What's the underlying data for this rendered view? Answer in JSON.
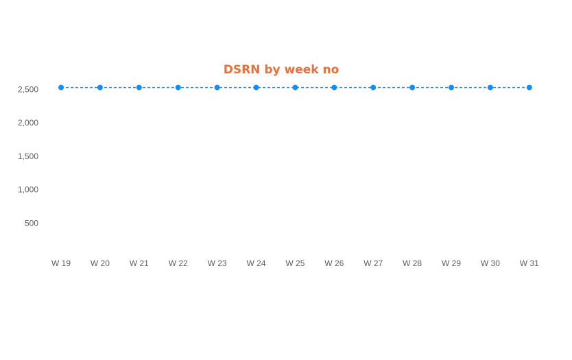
{
  "chart_data": {
    "type": "line",
    "title": "DSRN by week no",
    "xlabel": "",
    "ylabel": "",
    "categories": [
      "W 19",
      "W 20",
      "W 21",
      "W 22",
      "W 23",
      "W 24",
      "W 25",
      "W 26",
      "W 27",
      "W 28",
      "W 29",
      "W 30",
      "W 31"
    ],
    "series": [
      {
        "values": [
          2530,
          2530,
          2530,
          2530,
          2530,
          2530,
          2530,
          2530,
          2530,
          2530,
          2530,
          2530,
          2530
        ],
        "color": "#118dff",
        "line_style": "dashed"
      }
    ],
    "y_ticks": [
      {
        "value": 500,
        "label": "500"
      },
      {
        "value": 1000,
        "label": "1,000"
      },
      {
        "value": 1500,
        "label": "1,500"
      },
      {
        "value": 2000,
        "label": "2,000"
      },
      {
        "value": 2500,
        "label": "2,500"
      }
    ],
    "ylim": [
      0,
      2530
    ],
    "grid": false,
    "legend": "none",
    "title_color": "#e8703a"
  }
}
